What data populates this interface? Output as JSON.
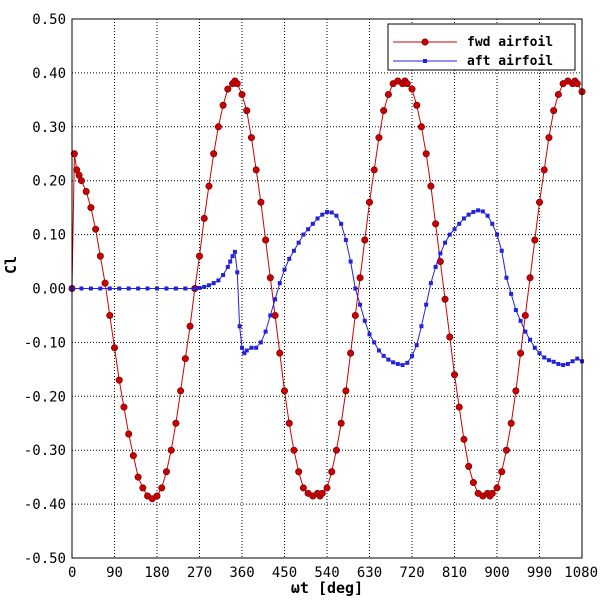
{
  "chart_data": {
    "type": "line",
    "title": "",
    "xlabel": "ωt [deg]",
    "ylabel": "Cl",
    "xlim": [
      0,
      1080
    ],
    "ylim": [
      -0.5,
      0.5
    ],
    "xticks": [
      0,
      90,
      180,
      270,
      360,
      450,
      540,
      630,
      720,
      810,
      900,
      990,
      1080
    ],
    "yticks": [
      -0.5,
      -0.4,
      -0.3,
      -0.2,
      -0.1,
      0.0,
      0.1,
      0.2,
      0.3,
      0.4,
      0.5
    ],
    "xtick_labels": [
      "0",
      "90",
      "180",
      "270",
      "360",
      "450",
      "540",
      "630",
      "720",
      "810",
      "900",
      "990",
      "1080"
    ],
    "ytick_labels": [
      "-0.50",
      "-0.40",
      "-0.30",
      "-0.20",
      "-0.10",
      "0.00",
      "0.10",
      "0.20",
      "0.30",
      "0.40",
      "0.50"
    ],
    "grid": true,
    "legend_position": "top-right",
    "series": [
      {
        "name": "fwd airfoil",
        "color": "#cc0000",
        "marker": "circle",
        "x": [
          0,
          5,
          10,
          15,
          20,
          30,
          40,
          50,
          60,
          70,
          80,
          90,
          100,
          110,
          120,
          130,
          140,
          150,
          160,
          170,
          180,
          190,
          200,
          210,
          220,
          230,
          240,
          250,
          260,
          270,
          280,
          290,
          300,
          310,
          320,
          330,
          340,
          345,
          350,
          360,
          370,
          380,
          390,
          400,
          410,
          420,
          430,
          440,
          450,
          460,
          470,
          480,
          490,
          500,
          510,
          520,
          525,
          530,
          540,
          550,
          560,
          570,
          580,
          590,
          600,
          610,
          620,
          630,
          640,
          650,
          660,
          670,
          680,
          690,
          700,
          705,
          710,
          720,
          730,
          740,
          750,
          760,
          770,
          780,
          790,
          800,
          810,
          820,
          830,
          840,
          850,
          860,
          870,
          880,
          885,
          890,
          900,
          910,
          920,
          930,
          940,
          950,
          960,
          970,
          980,
          990,
          1000,
          1010,
          1020,
          1030,
          1040,
          1050,
          1060,
          1065,
          1070,
          1080
        ],
        "y": [
          0.0,
          0.25,
          0.22,
          0.21,
          0.2,
          0.18,
          0.15,
          0.11,
          0.06,
          0.01,
          -0.05,
          -0.11,
          -0.17,
          -0.22,
          -0.27,
          -0.31,
          -0.35,
          -0.37,
          -0.385,
          -0.39,
          -0.385,
          -0.37,
          -0.34,
          -0.3,
          -0.25,
          -0.19,
          -0.13,
          -0.07,
          0.0,
          0.06,
          0.13,
          0.19,
          0.25,
          0.3,
          0.34,
          0.37,
          0.38,
          0.385,
          0.38,
          0.36,
          0.33,
          0.28,
          0.22,
          0.16,
          0.09,
          0.02,
          -0.05,
          -0.12,
          -0.19,
          -0.25,
          -0.3,
          -0.34,
          -0.37,
          -0.38,
          -0.385,
          -0.38,
          -0.385,
          -0.38,
          -0.37,
          -0.34,
          -0.3,
          -0.25,
          -0.19,
          -0.12,
          -0.05,
          0.02,
          0.09,
          0.16,
          0.22,
          0.28,
          0.33,
          0.36,
          0.38,
          0.385,
          0.38,
          0.385,
          0.38,
          0.37,
          0.34,
          0.3,
          0.25,
          0.19,
          0.12,
          0.05,
          -0.02,
          -0.09,
          -0.16,
          -0.22,
          -0.28,
          -0.33,
          -0.36,
          -0.38,
          -0.385,
          -0.38,
          -0.385,
          -0.38,
          -0.37,
          -0.34,
          -0.3,
          -0.25,
          -0.19,
          -0.12,
          -0.05,
          0.02,
          0.09,
          0.16,
          0.22,
          0.28,
          0.33,
          0.36,
          0.38,
          0.385,
          0.38,
          0.385,
          0.38,
          0.365
        ]
      },
      {
        "name": "aft airfoil",
        "color": "#2222dd",
        "marker": "square",
        "x": [
          0,
          20,
          40,
          60,
          80,
          100,
          120,
          140,
          160,
          180,
          200,
          220,
          240,
          260,
          270,
          280,
          290,
          300,
          310,
          320,
          330,
          335,
          340,
          345,
          350,
          355,
          360,
          365,
          370,
          380,
          390,
          400,
          410,
          420,
          430,
          440,
          450,
          460,
          470,
          480,
          490,
          500,
          510,
          520,
          530,
          540,
          550,
          560,
          570,
          580,
          590,
          600,
          610,
          620,
          630,
          640,
          650,
          660,
          670,
          680,
          690,
          700,
          710,
          720,
          730,
          740,
          750,
          760,
          770,
          780,
          790,
          800,
          810,
          820,
          830,
          840,
          850,
          860,
          870,
          880,
          890,
          900,
          910,
          920,
          930,
          940,
          950,
          960,
          970,
          980,
          990,
          1000,
          1010,
          1020,
          1030,
          1040,
          1050,
          1060,
          1070,
          1080
        ],
        "y": [
          0.0,
          0.0,
          0.0,
          0.0,
          0.0,
          0.0,
          0.0,
          0.0,
          0.0,
          0.0,
          0.0,
          0.0,
          0.0,
          0.0,
          0.001,
          0.003,
          0.006,
          0.01,
          0.015,
          0.025,
          0.04,
          0.05,
          0.06,
          0.068,
          0.03,
          -0.07,
          -0.11,
          -0.12,
          -0.115,
          -0.11,
          -0.11,
          -0.1,
          -0.08,
          -0.05,
          -0.02,
          0.01,
          0.035,
          0.055,
          0.07,
          0.085,
          0.1,
          0.11,
          0.12,
          0.13,
          0.137,
          0.142,
          0.141,
          0.135,
          0.12,
          0.09,
          0.05,
          0.0,
          -0.03,
          -0.06,
          -0.085,
          -0.1,
          -0.115,
          -0.125,
          -0.132,
          -0.137,
          -0.14,
          -0.142,
          -0.138,
          -0.125,
          -0.105,
          -0.07,
          -0.03,
          0.01,
          0.04,
          0.065,
          0.085,
          0.1,
          0.11,
          0.12,
          0.13,
          0.137,
          0.142,
          0.145,
          0.143,
          0.135,
          0.12,
          0.1,
          0.07,
          0.02,
          -0.01,
          -0.04,
          -0.06,
          -0.08,
          -0.095,
          -0.11,
          -0.12,
          -0.128,
          -0.133,
          -0.136,
          -0.14,
          -0.142,
          -0.14,
          -0.135,
          -0.13,
          -0.135
        ]
      }
    ]
  }
}
